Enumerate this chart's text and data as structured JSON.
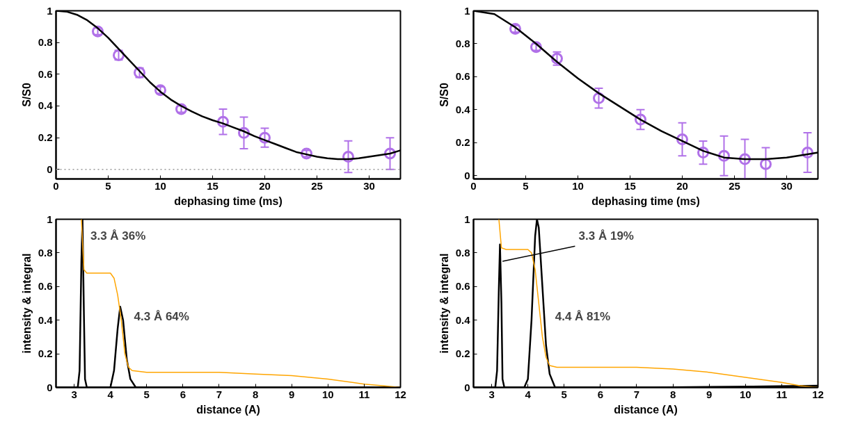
{
  "chart_data": [
    {
      "type": "line",
      "xlabel": "dephasing time (ms)",
      "ylabel": "S/S0",
      "xlim": [
        0,
        33
      ],
      "ylim": [
        -0.06,
        1.0
      ],
      "xticks": [
        0,
        5,
        10,
        15,
        20,
        25,
        30
      ],
      "yticks": [
        0,
        0.2,
        0.4,
        0.6,
        0.8,
        1
      ],
      "grid": false,
      "line_style": "solid",
      "ref_lines": [
        {
          "axis": "y",
          "value": 0,
          "color": "#999999",
          "line_style": "dotted"
        }
      ],
      "series": [
        {
          "type": "scatter",
          "marker": "circle",
          "color": "#b070e8",
          "x": [
            4,
            6,
            8,
            10,
            12,
            16,
            18,
            20,
            24,
            28,
            32
          ],
          "values": [
            0.87,
            0.72,
            0.61,
            0.5,
            0.38,
            0.3,
            0.23,
            0.2,
            0.1,
            0.08,
            0.1
          ],
          "errors": [
            0.02,
            0.03,
            0.03,
            0.02,
            0.02,
            0.08,
            0.1,
            0.06,
            0.02,
            0.1,
            0.1
          ]
        },
        {
          "type": "line",
          "color": "#000000",
          "x": [
            0,
            1,
            2,
            3,
            4,
            5,
            6,
            7,
            8,
            9,
            10,
            11,
            12,
            13,
            14,
            15,
            16,
            17,
            18,
            19,
            20,
            21,
            22,
            23,
            24,
            25,
            26,
            27,
            28,
            29,
            30,
            31,
            32,
            33
          ],
          "values": [
            1.0,
            0.995,
            0.975,
            0.94,
            0.89,
            0.83,
            0.76,
            0.69,
            0.62,
            0.55,
            0.49,
            0.44,
            0.4,
            0.365,
            0.335,
            0.31,
            0.29,
            0.265,
            0.24,
            0.21,
            0.185,
            0.16,
            0.135,
            0.11,
            0.095,
            0.08,
            0.07,
            0.065,
            0.065,
            0.07,
            0.08,
            0.09,
            0.1,
            0.12
          ]
        }
      ]
    },
    {
      "type": "line",
      "xlabel": "dephasing time (ms)",
      "ylabel": "S/S0",
      "xlim": [
        0,
        33
      ],
      "ylim": [
        -0.02,
        1.0
      ],
      "xticks": [
        0,
        5,
        10,
        15,
        20,
        25,
        30
      ],
      "yticks": [
        0,
        0.2,
        0.4,
        0.6,
        0.8,
        1
      ],
      "grid": false,
      "line_style": "solid",
      "series": [
        {
          "type": "scatter",
          "marker": "circle",
          "color": "#b070e8",
          "x": [
            4,
            6,
            8,
            12,
            16,
            20,
            22,
            24,
            26,
            28,
            32
          ],
          "values": [
            0.89,
            0.78,
            0.71,
            0.47,
            0.34,
            0.22,
            0.14,
            0.12,
            0.1,
            0.07,
            0.14
          ],
          "errors": [
            0.02,
            0.02,
            0.04,
            0.06,
            0.06,
            0.1,
            0.07,
            0.12,
            0.12,
            0.1,
            0.12
          ]
        },
        {
          "type": "line",
          "color": "#000000",
          "x": [
            0,
            2,
            4,
            6,
            8,
            10,
            12,
            14,
            16,
            18,
            20,
            22,
            24,
            26,
            28,
            30,
            32,
            33
          ],
          "values": [
            1.0,
            0.98,
            0.9,
            0.8,
            0.69,
            0.59,
            0.5,
            0.42,
            0.34,
            0.27,
            0.21,
            0.15,
            0.11,
            0.1,
            0.1,
            0.11,
            0.13,
            0.14
          ]
        }
      ]
    },
    {
      "type": "line",
      "xlabel": "distance (A)",
      "ylabel": "intensity & integral",
      "xlim": [
        2.5,
        12
      ],
      "ylim": [
        0,
        1
      ],
      "xticks": [
        3,
        4,
        5,
        6,
        7,
        8,
        9,
        10,
        11,
        12
      ],
      "yticks": [
        0,
        0.2,
        0.4,
        0.6,
        0.8,
        1
      ],
      "grid": false,
      "line_style": "solid",
      "annotations": [
        "3.3 Å  36%",
        "4.3 Å  64%"
      ],
      "series": [
        {
          "color": "#000000",
          "x": [
            2.5,
            3.1,
            3.15,
            3.2,
            3.23,
            3.27,
            3.3,
            3.35,
            4.0,
            4.1,
            4.2,
            4.27,
            4.35,
            4.45,
            4.55,
            4.7,
            12
          ],
          "values": [
            0,
            0,
            0.1,
            0.75,
            1.0,
            0.43,
            0.05,
            0,
            0,
            0.1,
            0.35,
            0.48,
            0.4,
            0.17,
            0.05,
            0,
            0
          ]
        },
        {
          "color": "#ffa500",
          "x": [
            3.2,
            3.27,
            3.35,
            3.5,
            4.0,
            4.1,
            4.2,
            4.3,
            4.4,
            4.5,
            4.6,
            5,
            7,
            8,
            9,
            10,
            11,
            11.5,
            12
          ],
          "values": [
            1.0,
            0.7,
            0.68,
            0.68,
            0.68,
            0.65,
            0.55,
            0.4,
            0.2,
            0.12,
            0.1,
            0.09,
            0.09,
            0.08,
            0.07,
            0.05,
            0.02,
            0.01,
            0
          ]
        }
      ]
    },
    {
      "type": "line",
      "xlabel": "distance (A)",
      "ylabel": "intensity & integral",
      "xlim": [
        2.5,
        12
      ],
      "ylim": [
        0,
        1
      ],
      "xticks": [
        3,
        4,
        5,
        6,
        7,
        8,
        9,
        10,
        11,
        12
      ],
      "yticks": [
        0,
        0.2,
        0.4,
        0.6,
        0.8,
        1
      ],
      "grid": false,
      "line_style": "solid",
      "annotations": [
        {
          "text": "3.3 Å  19%",
          "x": 3.3,
          "y": 0.75
        },
        "4.4 Å  81%"
      ],
      "series": [
        {
          "color": "#000000",
          "x": [
            2.5,
            3.1,
            3.15,
            3.2,
            3.23,
            3.27,
            3.3,
            3.35,
            3.9,
            4.0,
            4.1,
            4.2,
            4.25,
            4.3,
            4.4,
            4.5,
            4.6,
            4.75,
            7.5,
            10.2,
            12
          ],
          "values": [
            0,
            0,
            0.1,
            0.6,
            0.85,
            0.5,
            0.05,
            0,
            0,
            0.05,
            0.4,
            0.9,
            1.0,
            0.95,
            0.6,
            0.25,
            0.08,
            0,
            0,
            0.005,
            0.01
          ]
        },
        {
          "color": "#ffa500",
          "x": [
            3.2,
            3.27,
            3.4,
            4.0,
            4.1,
            4.2,
            4.3,
            4.4,
            4.5,
            4.6,
            4.8,
            7,
            8,
            9,
            10,
            11,
            11.5,
            12
          ],
          "values": [
            1.0,
            0.83,
            0.82,
            0.82,
            0.8,
            0.7,
            0.5,
            0.3,
            0.18,
            0.13,
            0.12,
            0.12,
            0.11,
            0.09,
            0.06,
            0.03,
            0.01,
            0
          ]
        }
      ]
    }
  ]
}
